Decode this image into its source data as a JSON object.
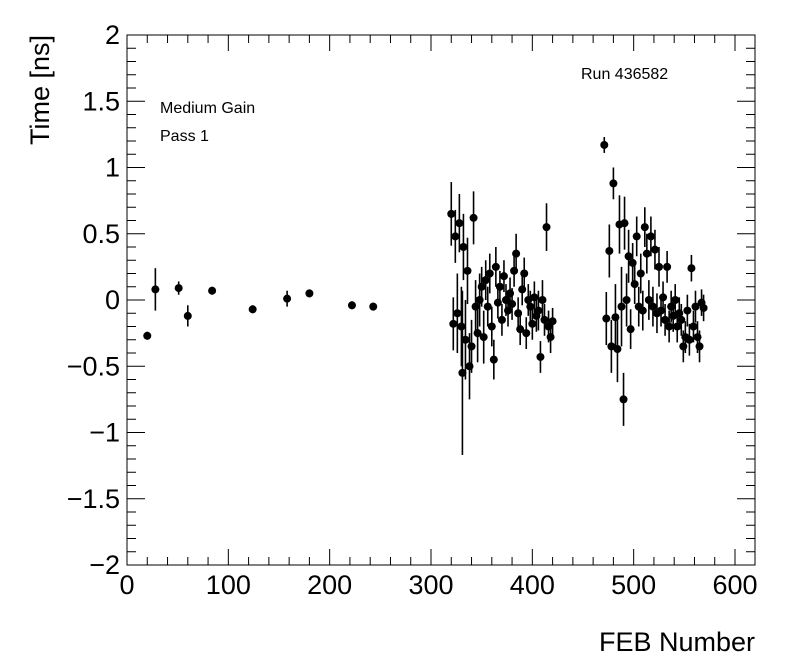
{
  "chart_data": {
    "type": "scatter",
    "title": "",
    "xlabel": "FEB Number",
    "ylabel": "Time [ns]",
    "xlim": [
      0,
      620
    ],
    "ylim": [
      -2,
      2
    ],
    "x_ticks": [
      "0",
      "100",
      "200",
      "300",
      "400",
      "500",
      "600"
    ],
    "y_ticks": [
      "2",
      "1.5",
      "1",
      "0.5",
      "0",
      "−0.5",
      "−1",
      "−1.5",
      "−2"
    ],
    "annotations": {
      "gain": "Medium Gain",
      "pass": "Pass 1",
      "run": "Run 436582"
    },
    "marker_color": "#000000",
    "grid": false,
    "series": [
      {
        "points": [
          {
            "x": 20,
            "y": -0.27,
            "err": 0.03
          },
          {
            "x": 28,
            "y": 0.08,
            "err": 0.16
          },
          {
            "x": 51,
            "y": 0.09,
            "err": 0.05
          },
          {
            "x": 60,
            "y": -0.12,
            "err": 0.08
          },
          {
            "x": 84,
            "y": 0.07,
            "err": 0.03
          },
          {
            "x": 124,
            "y": -0.07,
            "err": 0.03
          },
          {
            "x": 158,
            "y": 0.01,
            "err": 0.06
          },
          {
            "x": 180,
            "y": 0.05,
            "err": 0.03
          },
          {
            "x": 222,
            "y": -0.04,
            "err": 0.03
          },
          {
            "x": 243,
            "y": -0.05,
            "err": 0.03
          },
          {
            "x": 320,
            "y": 0.65,
            "err": 0.24
          },
          {
            "x": 322,
            "y": -0.18,
            "err": 0.2
          },
          {
            "x": 324,
            "y": 0.48,
            "err": 0.2
          },
          {
            "x": 326,
            "y": -0.1,
            "err": 0.3
          },
          {
            "x": 328,
            "y": 0.58,
            "err": 0.22
          },
          {
            "x": 330,
            "y": -0.2,
            "err": 0.3
          },
          {
            "x": 331,
            "y": -0.55,
            "err": 0.62
          },
          {
            "x": 332,
            "y": 0.4,
            "err": 0.25
          },
          {
            "x": 334,
            "y": -0.3,
            "err": 0.3
          },
          {
            "x": 336,
            "y": 0.22,
            "err": 0.25
          },
          {
            "x": 338,
            "y": -0.5,
            "err": 0.25
          },
          {
            "x": 340,
            "y": -0.35,
            "err": 0.2
          },
          {
            "x": 342,
            "y": 0.62,
            "err": 0.2
          },
          {
            "x": 344,
            "y": -0.05,
            "err": 0.2
          },
          {
            "x": 346,
            "y": -0.25,
            "err": 0.22
          },
          {
            "x": 348,
            "y": 0.0,
            "err": 0.2
          },
          {
            "x": 350,
            "y": 0.1,
            "err": 0.15
          },
          {
            "x": 352,
            "y": -0.28,
            "err": 0.2
          },
          {
            "x": 354,
            "y": 0.15,
            "err": 0.15
          },
          {
            "x": 356,
            "y": -0.05,
            "err": 0.15
          },
          {
            "x": 358,
            "y": 0.2,
            "err": 0.15
          },
          {
            "x": 360,
            "y": -0.2,
            "err": 0.15
          },
          {
            "x": 362,
            "y": -0.45,
            "err": 0.15
          },
          {
            "x": 364,
            "y": 0.25,
            "err": 0.15
          },
          {
            "x": 366,
            "y": -0.02,
            "err": 0.12
          },
          {
            "x": 368,
            "y": 0.1,
            "err": 0.12
          },
          {
            "x": 370,
            "y": -0.15,
            "err": 0.12
          },
          {
            "x": 372,
            "y": 0.18,
            "err": 0.12
          },
          {
            "x": 374,
            "y": 0.0,
            "err": 0.12
          },
          {
            "x": 376,
            "y": -0.08,
            "err": 0.12
          },
          {
            "x": 378,
            "y": 0.05,
            "err": 0.12
          },
          {
            "x": 380,
            "y": -0.03,
            "err": 0.12
          },
          {
            "x": 382,
            "y": 0.22,
            "err": 0.12
          },
          {
            "x": 384,
            "y": 0.35,
            "err": 0.15
          },
          {
            "x": 386,
            "y": -0.1,
            "err": 0.12
          },
          {
            "x": 388,
            "y": -0.22,
            "err": 0.12
          },
          {
            "x": 390,
            "y": 0.08,
            "err": 0.12
          },
          {
            "x": 392,
            "y": 0.2,
            "err": 0.12
          },
          {
            "x": 394,
            "y": -0.25,
            "err": 0.12
          },
          {
            "x": 396,
            "y": 0.0,
            "err": 0.12
          },
          {
            "x": 398,
            "y": -0.05,
            "err": 0.12
          },
          {
            "x": 400,
            "y": -0.18,
            "err": 0.12
          },
          {
            "x": 402,
            "y": 0.02,
            "err": 0.12
          },
          {
            "x": 404,
            "y": -0.12,
            "err": 0.12
          },
          {
            "x": 406,
            "y": -0.08,
            "err": 0.15
          },
          {
            "x": 408,
            "y": -0.43,
            "err": 0.12
          },
          {
            "x": 410,
            "y": 0.0,
            "err": 0.15
          },
          {
            "x": 412,
            "y": -0.15,
            "err": 0.12
          },
          {
            "x": 414,
            "y": 0.55,
            "err": 0.18
          },
          {
            "x": 416,
            "y": -0.2,
            "err": 0.12
          },
          {
            "x": 418,
            "y": -0.28,
            "err": 0.12
          },
          {
            "x": 420,
            "y": -0.16,
            "err": 0.1
          },
          {
            "x": 471,
            "y": 1.17,
            "err": 0.06
          },
          {
            "x": 473,
            "y": -0.14,
            "err": 0.2
          },
          {
            "x": 476,
            "y": 0.37,
            "err": 0.2
          },
          {
            "x": 478,
            "y": -0.35,
            "err": 0.2
          },
          {
            "x": 480,
            "y": 0.88,
            "err": 0.12
          },
          {
            "x": 482,
            "y": -0.13,
            "err": 0.25
          },
          {
            "x": 484,
            "y": -0.37,
            "err": 0.25
          },
          {
            "x": 486,
            "y": 0.57,
            "err": 0.22
          },
          {
            "x": 488,
            "y": -0.05,
            "err": 0.3
          },
          {
            "x": 490,
            "y": -0.75,
            "err": 0.2
          },
          {
            "x": 491,
            "y": 0.58,
            "err": 0.2
          },
          {
            "x": 493,
            "y": 0.0,
            "err": 0.2
          },
          {
            "x": 495,
            "y": 0.33,
            "err": 0.2
          },
          {
            "x": 497,
            "y": -0.22,
            "err": 0.15
          },
          {
            "x": 499,
            "y": 0.28,
            "err": 0.15
          },
          {
            "x": 501,
            "y": 0.12,
            "err": 0.15
          },
          {
            "x": 503,
            "y": 0.48,
            "err": 0.15
          },
          {
            "x": 505,
            "y": -0.05,
            "err": 0.15
          },
          {
            "x": 507,
            "y": 0.2,
            "err": 0.15
          },
          {
            "x": 509,
            "y": -0.08,
            "err": 0.15
          },
          {
            "x": 511,
            "y": 0.55,
            "err": 0.15
          },
          {
            "x": 513,
            "y": 0.35,
            "err": 0.15
          },
          {
            "x": 515,
            "y": 0.0,
            "err": 0.15
          },
          {
            "x": 517,
            "y": 0.48,
            "err": 0.15
          },
          {
            "x": 519,
            "y": -0.05,
            "err": 0.15
          },
          {
            "x": 521,
            "y": 0.38,
            "err": 0.15
          },
          {
            "x": 523,
            "y": -0.1,
            "err": 0.15
          },
          {
            "x": 525,
            "y": 0.25,
            "err": 0.15
          },
          {
            "x": 527,
            "y": -0.08,
            "err": 0.12
          },
          {
            "x": 529,
            "y": 0.02,
            "err": 0.12
          },
          {
            "x": 531,
            "y": -0.15,
            "err": 0.12
          },
          {
            "x": 533,
            "y": 0.25,
            "err": 0.12
          },
          {
            "x": 535,
            "y": -0.2,
            "err": 0.12
          },
          {
            "x": 537,
            "y": -0.05,
            "err": 0.12
          },
          {
            "x": 539,
            "y": -0.12,
            "err": 0.12
          },
          {
            "x": 541,
            "y": 0.0,
            "err": 0.12
          },
          {
            "x": 543,
            "y": -0.2,
            "err": 0.12
          },
          {
            "x": 545,
            "y": -0.1,
            "err": 0.12
          },
          {
            "x": 547,
            "y": -0.15,
            "err": 0.12
          },
          {
            "x": 549,
            "y": -0.35,
            "err": 0.12
          },
          {
            "x": 551,
            "y": -0.28,
            "err": 0.12
          },
          {
            "x": 553,
            "y": -0.08,
            "err": 0.12
          },
          {
            "x": 555,
            "y": -0.3,
            "err": 0.12
          },
          {
            "x": 557,
            "y": 0.24,
            "err": 0.1
          },
          {
            "x": 559,
            "y": -0.2,
            "err": 0.12
          },
          {
            "x": 561,
            "y": -0.05,
            "err": 0.12
          },
          {
            "x": 563,
            "y": -0.28,
            "err": 0.12
          },
          {
            "x": 565,
            "y": -0.35,
            "err": 0.12
          },
          {
            "x": 567,
            "y": -0.02,
            "err": 0.1
          },
          {
            "x": 569,
            "y": -0.06,
            "err": 0.1
          }
        ]
      }
    ]
  }
}
